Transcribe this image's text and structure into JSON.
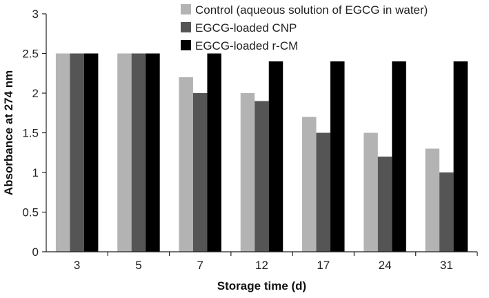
{
  "chart_data": {
    "type": "bar",
    "title": "",
    "xlabel": "Storage time (d)",
    "ylabel": "Absorbance at 274 nm",
    "categories": [
      "3",
      "5",
      "7",
      "12",
      "17",
      "24",
      "31"
    ],
    "ylim": [
      0,
      3
    ],
    "yticks": [
      "0",
      "0.5",
      "1",
      "1.5",
      "2",
      "2.5",
      "3"
    ],
    "grid": false,
    "legend_position": "top-right",
    "series": [
      {
        "name": "Control (aqueous solution of EGCG in water)",
        "color": "#b3b3b3",
        "values": [
          2.5,
          2.5,
          2.2,
          2.0,
          1.7,
          1.5,
          1.3
        ]
      },
      {
        "name": "EGCG-loaded CNP",
        "color": "#555555",
        "values": [
          2.5,
          2.5,
          2.0,
          1.9,
          1.5,
          1.2,
          1.0
        ]
      },
      {
        "name": "EGCG-loaded r-CM",
        "color": "#000000",
        "values": [
          2.5,
          2.5,
          2.5,
          2.4,
          2.4,
          2.4,
          2.4
        ]
      }
    ]
  }
}
